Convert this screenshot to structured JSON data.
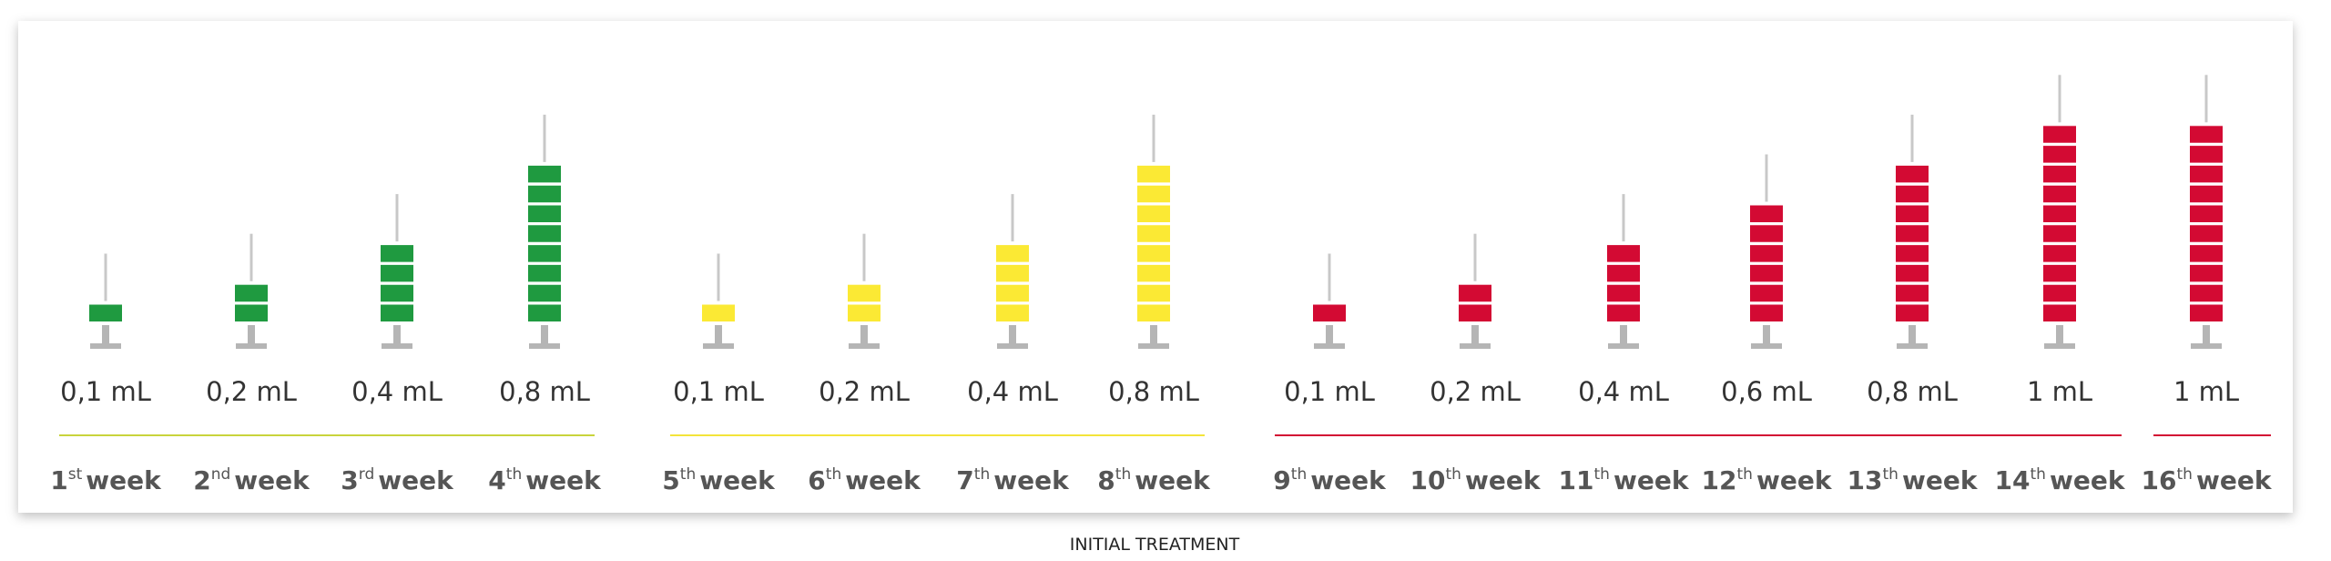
{
  "caption": "INITIAL TREATMENT",
  "groups": [
    {
      "color": "#1f9a40",
      "line_color": "#c9d43c",
      "items": [
        {
          "dose": 0.1,
          "dose_label": "0,1 mL",
          "week_number": "1",
          "week_suffix": "st",
          "week_word": "week"
        },
        {
          "dose": 0.2,
          "dose_label": "0,2 mL",
          "week_number": "2",
          "week_suffix": "nd",
          "week_word": "week"
        },
        {
          "dose": 0.4,
          "dose_label": "0,4 mL",
          "week_number": "3",
          "week_suffix": "rd",
          "week_word": "week"
        },
        {
          "dose": 0.8,
          "dose_label": "0,8 mL",
          "week_number": "4",
          "week_suffix": "th",
          "week_word": "week"
        }
      ]
    },
    {
      "color": "#fbe934",
      "line_color": "#f3e43a",
      "items": [
        {
          "dose": 0.1,
          "dose_label": "0,1 mL",
          "week_number": "5",
          "week_suffix": "th",
          "week_word": "week"
        },
        {
          "dose": 0.2,
          "dose_label": "0,2 mL",
          "week_number": "6",
          "week_suffix": "th",
          "week_word": "week"
        },
        {
          "dose": 0.4,
          "dose_label": "0,4 mL",
          "week_number": "7",
          "week_suffix": "th",
          "week_word": "week"
        },
        {
          "dose": 0.8,
          "dose_label": "0,8 mL",
          "week_number": "8",
          "week_suffix": "th",
          "week_word": "week"
        }
      ]
    },
    {
      "color": "#d30a33",
      "line_color": "#d30a33",
      "items": [
        {
          "dose": 0.1,
          "dose_label": "0,1 mL",
          "week_number": "9",
          "week_suffix": "th",
          "week_word": "week"
        },
        {
          "dose": 0.2,
          "dose_label": "0,2 mL",
          "week_number": "10",
          "week_suffix": "th",
          "week_word": "week"
        },
        {
          "dose": 0.4,
          "dose_label": "0,4 mL",
          "week_number": "11",
          "week_suffix": "th",
          "week_word": "week"
        },
        {
          "dose": 0.6,
          "dose_label": "0,6 mL",
          "week_number": "12",
          "week_suffix": "th",
          "week_word": "week"
        },
        {
          "dose": 0.8,
          "dose_label": "0,8 mL",
          "week_number": "13",
          "week_suffix": "th",
          "week_word": "week"
        },
        {
          "dose": 1,
          "dose_label": "1 mL",
          "week_number": "14",
          "week_suffix": "th",
          "week_word": "week"
        }
      ]
    },
    {
      "color": "#d30a33",
      "line_color": "#d30a33",
      "items": [
        {
          "dose": 1,
          "dose_label": "1 mL",
          "week_number": "16",
          "week_suffix": "th",
          "week_word": "week"
        }
      ]
    }
  ]
}
